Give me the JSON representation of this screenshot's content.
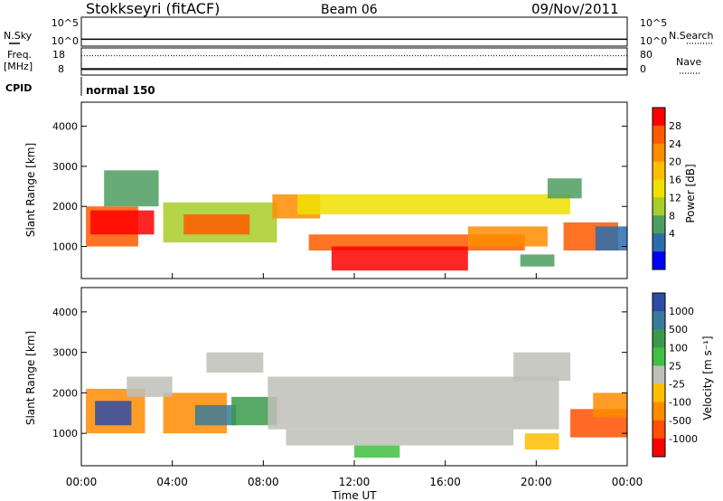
{
  "header": {
    "station": "Stokkseyri (fitACF)",
    "beam": "Beam 06",
    "date": "09/Nov/2011"
  },
  "chart_data": [
    {
      "type": "line",
      "name": "noise",
      "left_label": "N.Sky",
      "right_label": "N.Search",
      "left_ticks": [
        "10^5",
        "10^0"
      ],
      "right_ticks": [
        "10^5",
        "10^0"
      ],
      "log_scale": true,
      "ylim": [
        0,
        5
      ],
      "level": 1.2
    },
    {
      "type": "line",
      "name": "frequency",
      "left_label_lines": [
        "Freq.",
        "[MHz]"
      ],
      "right_label": "Nave",
      "left_ticks": [
        "18",
        "8"
      ],
      "right_ticks": [
        "80",
        "0"
      ],
      "freq_ylim": [
        8,
        18
      ],
      "nave_ylim": [
        0,
        80
      ],
      "freq_value": 10.2,
      "nave_value": 57
    },
    {
      "type": "table",
      "name": "cpid",
      "label": "CPID",
      "value": "normal 150"
    },
    {
      "type": "heatmap",
      "name": "power",
      "ylabel": "Slant Range [km]",
      "xlabel": "",
      "y_ticks": [
        1000,
        2000,
        3000,
        4000
      ],
      "ylim": [
        200,
        4600
      ],
      "colorbar": {
        "label": "Power [dB]",
        "ticks": [
          "28",
          "24",
          "20",
          "16",
          "12",
          "8",
          "4"
        ],
        "colors": [
          "#ff0000",
          "#ff5a00",
          "#ff8c00",
          "#ffbe00",
          "#f0e000",
          "#a8cc28",
          "#4c9e60",
          "#2c6cae",
          "#0000ff"
        ]
      },
      "bands": [
        {
          "t0": 0.2,
          "t1": 2.5,
          "r0": 1000,
          "r1": 2000,
          "color": "#ff5a00"
        },
        {
          "t0": 0.4,
          "t1": 3.2,
          "r0": 1300,
          "r1": 1900,
          "color": "#ff0000"
        },
        {
          "t0": 1.0,
          "t1": 3.4,
          "r0": 2000,
          "r1": 2900,
          "color": "#4c9e60"
        },
        {
          "t0": 3.6,
          "t1": 8.6,
          "r0": 1100,
          "r1": 2100,
          "color": "#a8cc28"
        },
        {
          "t0": 4.5,
          "t1": 7.4,
          "r0": 1300,
          "r1": 1800,
          "color": "#ff5a00"
        },
        {
          "t0": 8.4,
          "t1": 10.5,
          "r0": 1700,
          "r1": 2300,
          "color": "#ff8c00"
        },
        {
          "t0": 9.5,
          "t1": 21.5,
          "r0": 1800,
          "r1": 2300,
          "color": "#f0e000"
        },
        {
          "t0": 10.0,
          "t1": 19.5,
          "r0": 900,
          "r1": 1300,
          "color": "#ff5a00"
        },
        {
          "t0": 11.0,
          "t1": 17.0,
          "r0": 400,
          "r1": 1000,
          "color": "#ff0000"
        },
        {
          "t0": 17.0,
          "t1": 20.5,
          "r0": 1000,
          "r1": 1500,
          "color": "#ff8c00"
        },
        {
          "t0": 19.3,
          "t1": 20.8,
          "r0": 500,
          "r1": 800,
          "color": "#4c9e60"
        },
        {
          "t0": 20.5,
          "t1": 22.0,
          "r0": 2200,
          "r1": 2700,
          "color": "#4c9e60"
        },
        {
          "t0": 21.2,
          "t1": 23.6,
          "r0": 900,
          "r1": 1600,
          "color": "#ff5a00"
        },
        {
          "t0": 22.6,
          "t1": 24.0,
          "r0": 900,
          "r1": 1500,
          "color": "#2c6cae"
        }
      ]
    },
    {
      "type": "heatmap",
      "name": "velocity",
      "ylabel": "Slant Range [km]",
      "xlabel": "Time UT",
      "y_ticks": [
        1000,
        2000,
        3000,
        4000
      ],
      "ylim": [
        200,
        4600
      ],
      "x_ticks": [
        "00:00",
        "04:00",
        "08:00",
        "12:00",
        "16:00",
        "20:00",
        "00:00"
      ],
      "xlim": [
        0,
        24
      ],
      "colorbar": {
        "label": "Velocity [m s⁻¹]",
        "ticks": [
          "1000",
          "500",
          "100",
          "25",
          "-25",
          "-100",
          "-500",
          "-1000"
        ],
        "colors": [
          "#2c4ca8",
          "#3a7a9a",
          "#3a9a4a",
          "#40c040",
          "#c0c0b8",
          "#ffbe00",
          "#ff8c00",
          "#ff5000",
          "#ff0000"
        ]
      },
      "bands": [
        {
          "t0": 0.2,
          "t1": 2.8,
          "r0": 1000,
          "r1": 2100,
          "color": "#ff8c00"
        },
        {
          "t0": 0.6,
          "t1": 2.2,
          "r0": 1200,
          "r1": 1800,
          "color": "#2c4ca8"
        },
        {
          "t0": 3.6,
          "t1": 6.4,
          "r0": 1000,
          "r1": 2000,
          "color": "#ff8c00"
        },
        {
          "t0": 5.0,
          "t1": 6.8,
          "r0": 1200,
          "r1": 1700,
          "color": "#3a7a9a"
        },
        {
          "t0": 2.0,
          "t1": 4.0,
          "r0": 1900,
          "r1": 2400,
          "color": "#c0c0b8"
        },
        {
          "t0": 5.5,
          "t1": 8.0,
          "r0": 2500,
          "r1": 3000,
          "color": "#c0c0b8"
        },
        {
          "t0": 6.6,
          "t1": 8.6,
          "r0": 1200,
          "r1": 1900,
          "color": "#3a9a4a"
        },
        {
          "t0": 8.2,
          "t1": 21.0,
          "r0": 1100,
          "r1": 2400,
          "color": "#c0c0b8"
        },
        {
          "t0": 9.0,
          "t1": 19.0,
          "r0": 700,
          "r1": 1100,
          "color": "#c0c0b8"
        },
        {
          "t0": 12.0,
          "t1": 14.0,
          "r0": 400,
          "r1": 700,
          "color": "#40c040"
        },
        {
          "t0": 19.0,
          "t1": 21.5,
          "r0": 2300,
          "r1": 3000,
          "color": "#c0c0b8"
        },
        {
          "t0": 19.5,
          "t1": 21.0,
          "r0": 600,
          "r1": 1000,
          "color": "#ffbe00"
        },
        {
          "t0": 21.5,
          "t1": 24.0,
          "r0": 900,
          "r1": 1600,
          "color": "#ff5000"
        },
        {
          "t0": 22.5,
          "t1": 24.0,
          "r0": 1400,
          "r1": 2000,
          "color": "#ff8c00"
        }
      ]
    }
  ]
}
